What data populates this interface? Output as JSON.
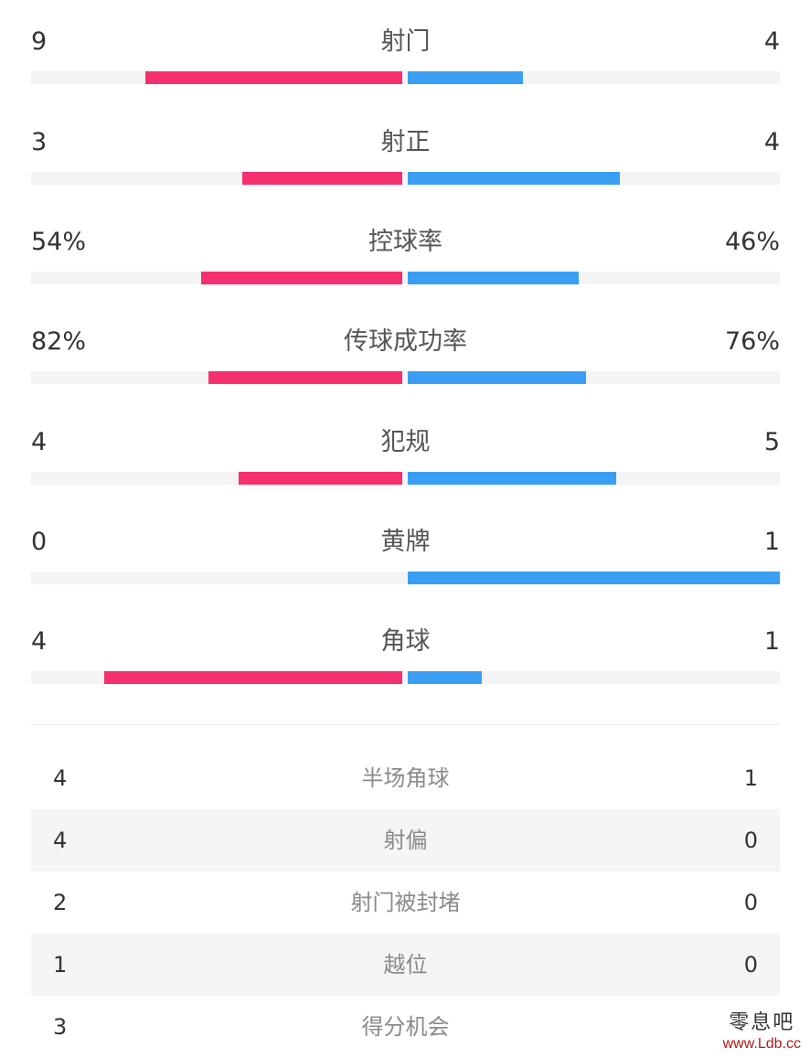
{
  "colors": {
    "home": "#f4306f",
    "away": "#3a9ff2",
    "track": "#f4f4f4"
  },
  "bar_stats": [
    {
      "label": "射门",
      "home": "9",
      "away": "4",
      "home_fill": 0.69,
      "away_fill": 0.31
    },
    {
      "label": "射正",
      "home": "3",
      "away": "4",
      "home_fill": 0.43,
      "away_fill": 0.57
    },
    {
      "label": "控球率",
      "home": "54%",
      "away": "46%",
      "home_fill": 0.54,
      "away_fill": 0.46
    },
    {
      "label": "传球成功率",
      "home": "82%",
      "away": "76%",
      "home_fill": 0.52,
      "away_fill": 0.48
    },
    {
      "label": "犯规",
      "home": "4",
      "away": "5",
      "home_fill": 0.44,
      "away_fill": 0.56
    },
    {
      "label": "黄牌",
      "home": "0",
      "away": "1",
      "home_fill": 0.0,
      "away_fill": 1.0
    },
    {
      "label": "角球",
      "home": "4",
      "away": "1",
      "home_fill": 0.8,
      "away_fill": 0.2
    }
  ],
  "table_stats": [
    {
      "label": "半场角球",
      "home": "4",
      "away": "1"
    },
    {
      "label": "射偏",
      "home": "4",
      "away": "0"
    },
    {
      "label": "射门被封堵",
      "home": "2",
      "away": "0"
    },
    {
      "label": "越位",
      "home": "1",
      "away": "0"
    },
    {
      "label": "得分机会",
      "home": "3",
      "away": ""
    }
  ],
  "watermark": {
    "cn": "零息吧",
    "url": "www.Ldb.cc"
  }
}
